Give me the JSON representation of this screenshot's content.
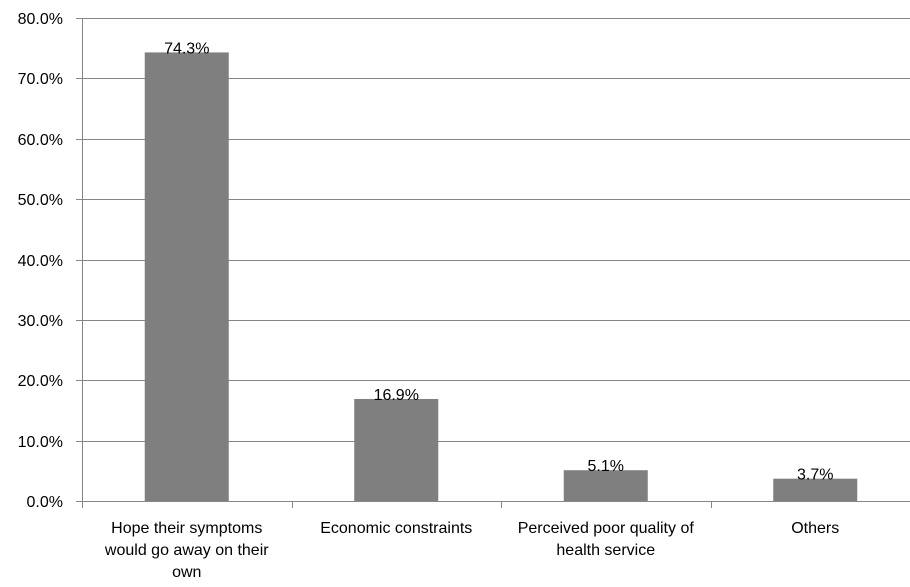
{
  "chart_data": {
    "type": "bar",
    "categories": [
      [
        "Hope their symptoms",
        "would go away on their",
        "own"
      ],
      [
        "Economic constraints"
      ],
      [
        "Perceived poor quality of",
        "health service"
      ],
      [
        "Others"
      ]
    ],
    "values": [
      74.3,
      16.9,
      5.1,
      3.7
    ],
    "data_labels": [
      "74.3%",
      "16.9%",
      "5.1%",
      "3.7%"
    ],
    "ylim": [
      0,
      80
    ],
    "y_ticks": [
      0,
      10,
      20,
      30,
      40,
      50,
      60,
      70,
      80
    ],
    "y_tick_labels": [
      "0.0%",
      "10.0%",
      "20.0%",
      "30.0%",
      "40.0%",
      "50.0%",
      "60.0%",
      "70.0%",
      "80.0%"
    ],
    "grid": true,
    "legend": "none",
    "title": "",
    "xlabel": "",
    "ylabel": "",
    "colors": {
      "bar": "#7f7f7f",
      "grid": "#868686",
      "axis": "#868686"
    }
  }
}
